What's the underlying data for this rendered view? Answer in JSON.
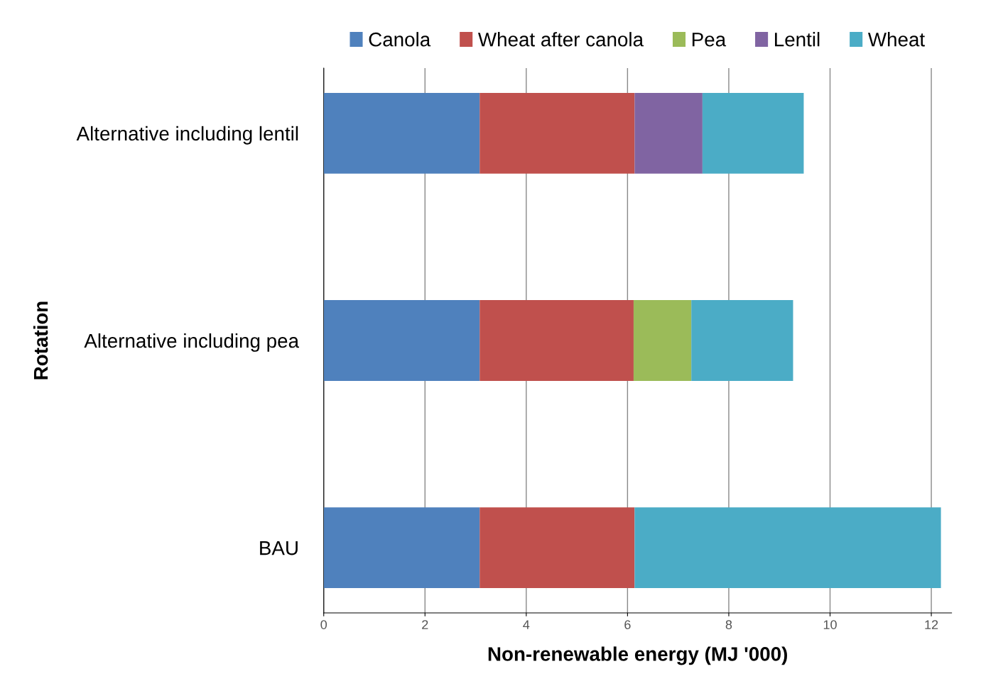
{
  "chart_data": {
    "type": "bar",
    "orientation": "horizontal",
    "stacked": true,
    "categories": [
      "Alternative including lentil",
      "Alternative including pea",
      "BAU"
    ],
    "series": [
      {
        "name": "Canola",
        "color": "#4f81bd",
        "values": [
          3.08,
          3.08,
          3.08
        ]
      },
      {
        "name": "Wheat after canola",
        "color": "#c0504d",
        "values": [
          3.06,
          3.04,
          3.06
        ]
      },
      {
        "name": "Pea",
        "color": "#9bbb59",
        "values": [
          null,
          1.14,
          null
        ]
      },
      {
        "name": "Lentil",
        "color": "#8064a2",
        "values": [
          1.34,
          null,
          null
        ]
      },
      {
        "name": "Wheat",
        "color": "#4bacc6",
        "values": [
          2.0,
          2.01,
          6.05
        ]
      }
    ],
    "xlabel": "Non-renewable energy (MJ '000)",
    "ylabel": "Rotation",
    "xlim": [
      0,
      12.4
    ],
    "xticks": [
      0,
      2,
      4,
      6,
      8,
      10,
      12
    ],
    "grid": "x",
    "legend": "top"
  }
}
